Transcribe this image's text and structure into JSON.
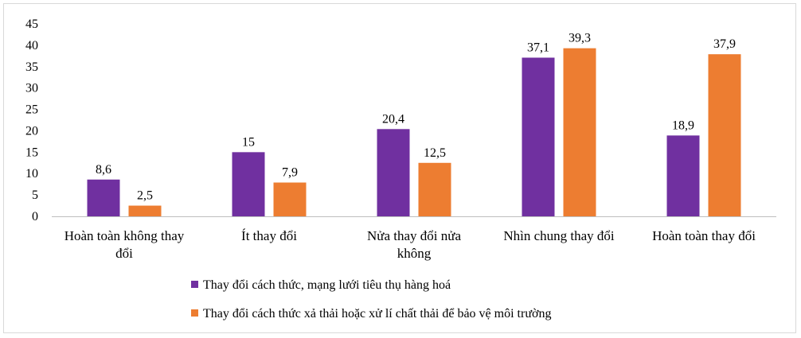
{
  "chart_data": {
    "type": "bar",
    "categories": [
      [
        "Hoàn toàn không thay",
        "đổi"
      ],
      [
        "Ít thay đổi"
      ],
      [
        "Nửa thay đổi nửa",
        "không"
      ],
      [
        "Nhìn chung thay đổi"
      ],
      [
        "Hoàn toàn thay đổi"
      ]
    ],
    "series": [
      {
        "name": "Thay đổi cách thức, mạng lưới tiêu thụ hàng hoá",
        "values": [
          8.6,
          15,
          20.4,
          37.1,
          18.9
        ],
        "labels": [
          "8,6",
          "15",
          "20,4",
          "37,1",
          "18,9"
        ],
        "color": "#7030a0"
      },
      {
        "name": "Thay đổi cách thức xả thải hoặc xử lí chất thải để bảo vệ môi trường",
        "values": [
          2.5,
          7.9,
          12.5,
          39.3,
          37.9
        ],
        "labels": [
          "2,5",
          "7,9",
          "12,5",
          "39,3",
          "37,9"
        ],
        "color": "#ed7d31"
      }
    ],
    "yticks": [
      0,
      5,
      10,
      15,
      20,
      25,
      30,
      35,
      40,
      45
    ],
    "ylim": [
      0,
      45
    ],
    "grid": false,
    "legend_position": "bottom"
  }
}
